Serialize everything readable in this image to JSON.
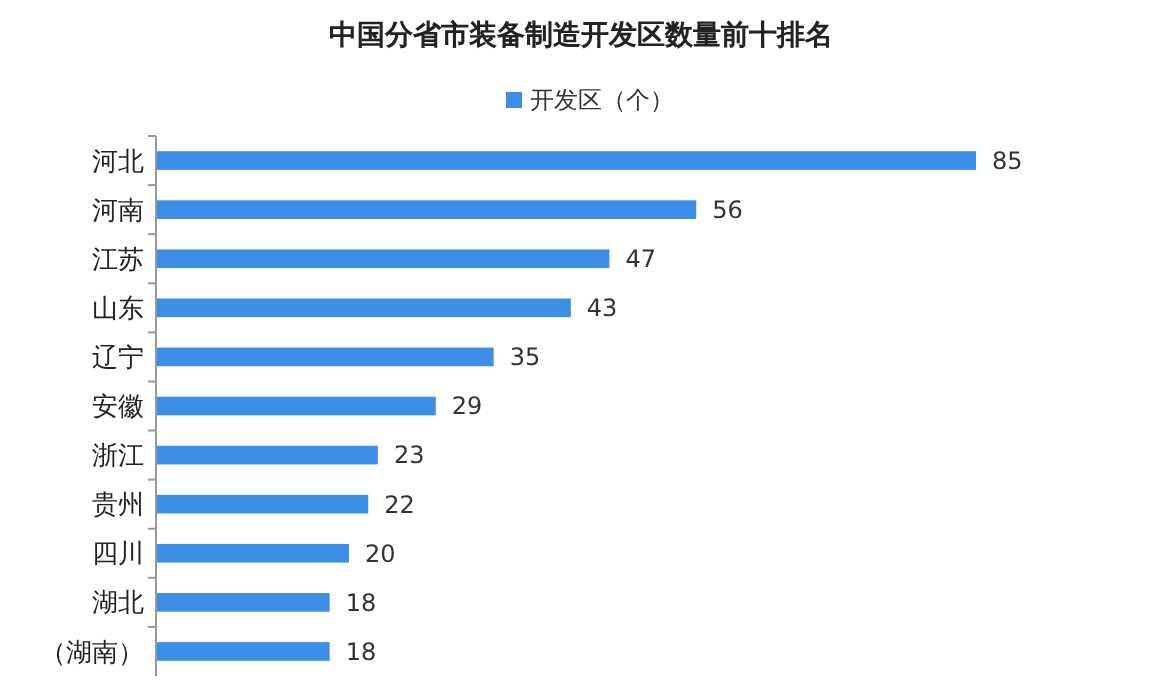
{
  "chart_data": {
    "type": "bar",
    "orientation": "horizontal",
    "title": "中国分省市装备制造开发区数量前十排名",
    "categories": [
      "河北",
      "河南",
      "江苏",
      "山东",
      "辽宁",
      "安徽",
      "浙江",
      "贵州",
      "四川",
      "湖北",
      "（湖南）"
    ],
    "series": [
      {
        "name": "开发区（个）",
        "color": "#3d8ee6",
        "values": [
          85,
          56,
          47,
          43,
          35,
          29,
          23,
          22,
          20,
          18,
          18
        ]
      }
    ],
    "data_labels": true,
    "legend": "top"
  }
}
